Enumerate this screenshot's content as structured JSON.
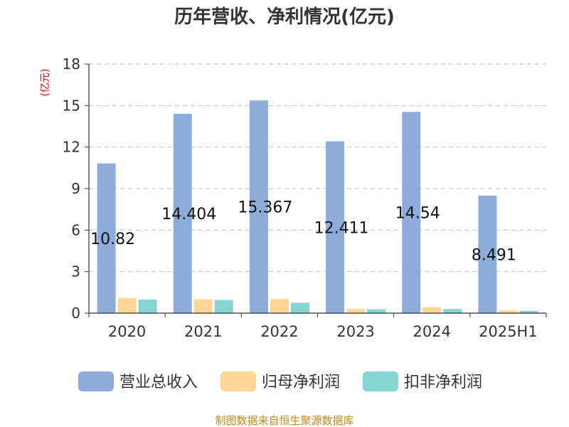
{
  "chart_data": {
    "type": "bar",
    "title": "历年营收、净利情况(亿元)",
    "ylabel": "(亿元)",
    "categories": [
      "2020",
      "2021",
      "2022",
      "2023",
      "2024",
      "2025H1"
    ],
    "ylim": [
      0,
      18
    ],
    "yticks": [
      0,
      3,
      6,
      9,
      12,
      15,
      18
    ],
    "grid": true,
    "legend_position": "bottom",
    "series": [
      {
        "name": "营业总收入",
        "color": "#8eacd9",
        "values": [
          10.82,
          14.404,
          15.367,
          12.411,
          14.54,
          8.491
        ],
        "labels": [
          "10.82",
          "14.404",
          "15.367",
          "12.411",
          "14.54",
          "8.491"
        ]
      },
      {
        "name": "归母净利润",
        "color": "#ffd696",
        "values": [
          1.08,
          1.0,
          1.02,
          0.3,
          0.43,
          0.2
        ]
      },
      {
        "name": "扣非净利润",
        "color": "#86d5d5",
        "values": [
          0.98,
          0.95,
          0.75,
          0.28,
          0.3,
          0.17
        ]
      }
    ]
  },
  "source": "制图数据来自恒生聚源数据库"
}
